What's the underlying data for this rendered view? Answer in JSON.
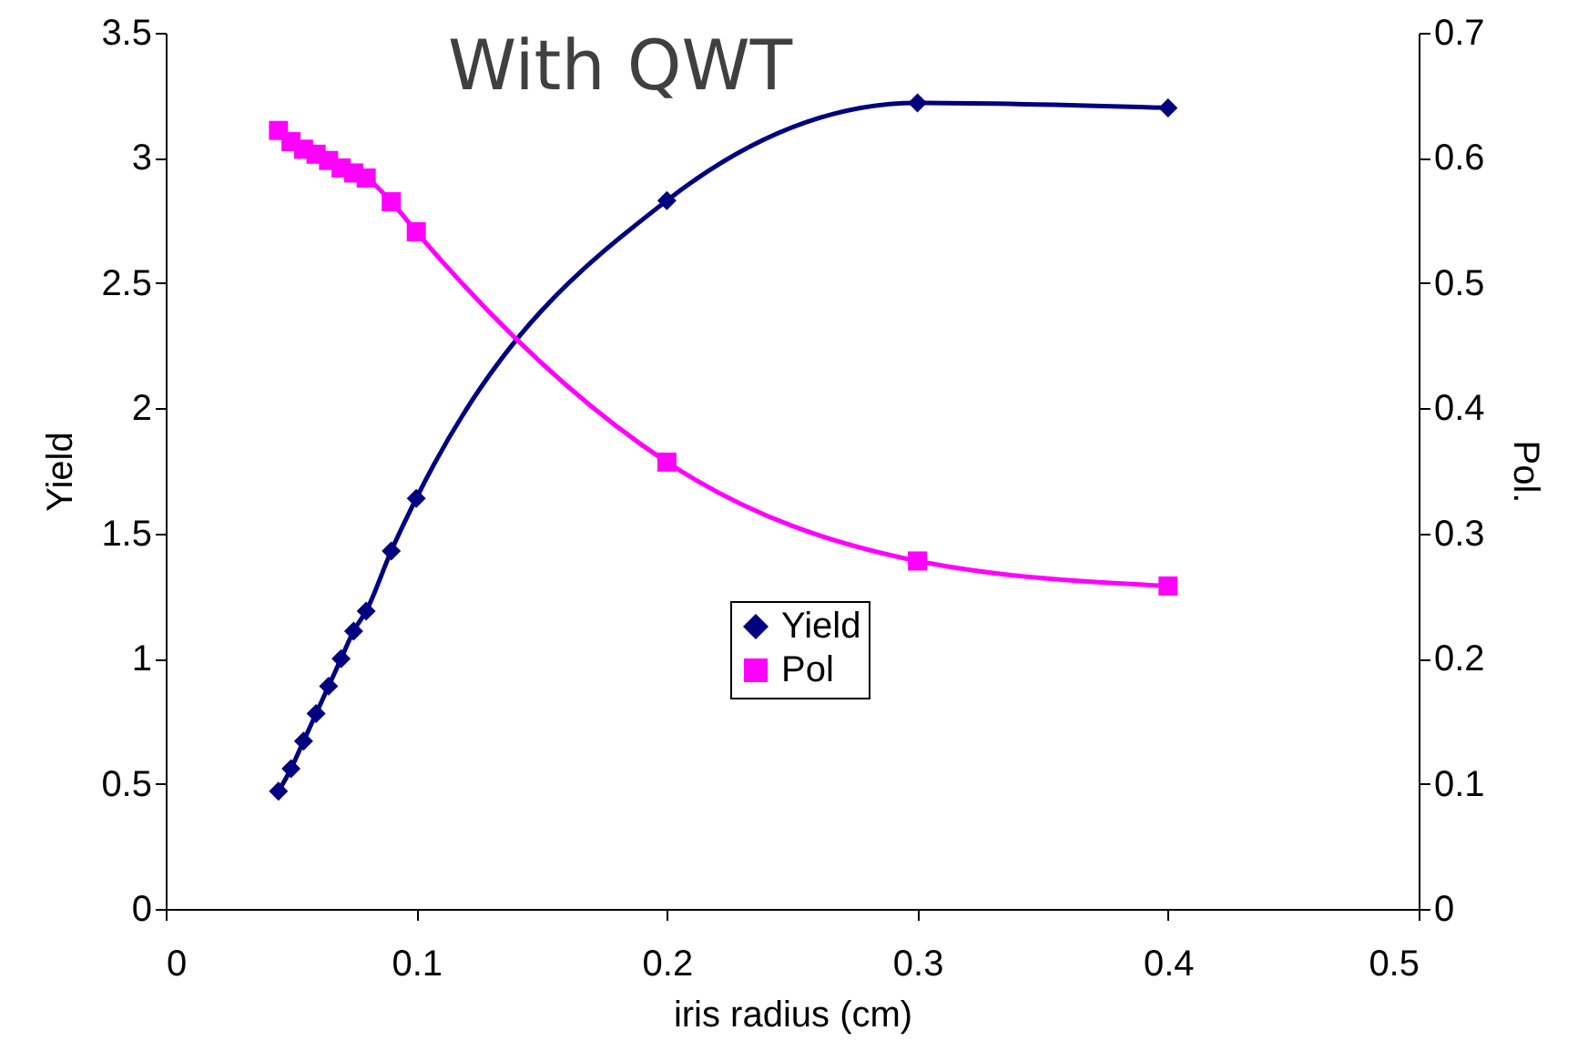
{
  "chart_data": {
    "type": "line",
    "title": "With QWT",
    "xlabel": "iris radius (cm)",
    "ylabel": "Yield",
    "y2label": "Pol.",
    "xlim": [
      0,
      0.5
    ],
    "xticks": [
      0,
      0.1,
      0.2,
      0.3,
      0.4,
      0.5
    ],
    "ylim": [
      0,
      3.5
    ],
    "yticks": [
      0,
      0.5,
      1,
      1.5,
      2,
      2.5,
      3,
      3.5
    ],
    "y2lim": [
      0,
      0.7
    ],
    "y2ticks": [
      0,
      0.1,
      0.2,
      0.3,
      0.4,
      0.5,
      0.6,
      0.7
    ],
    "grid": false,
    "legend": "center",
    "x": [
      0.045,
      0.05,
      0.055,
      0.06,
      0.065,
      0.07,
      0.075,
      0.08,
      0.09,
      0.1,
      0.2,
      0.3,
      0.4
    ],
    "series": [
      {
        "name": "Yield",
        "color": "#000080",
        "marker": "diamond",
        "values": [
          0.47,
          0.56,
          0.67,
          0.78,
          0.89,
          1.0,
          1.11,
          1.19,
          1.43,
          1.64,
          2.83,
          3.22,
          3.2
        ]
      },
      {
        "name": "Pol",
        "color": "#ff00ff",
        "marker": "square",
        "axis": "y2",
        "values": [
          0.622,
          0.613,
          0.607,
          0.603,
          0.598,
          0.592,
          0.588,
          0.584,
          0.565,
          0.541,
          0.357,
          0.278,
          0.258
        ]
      }
    ]
  }
}
